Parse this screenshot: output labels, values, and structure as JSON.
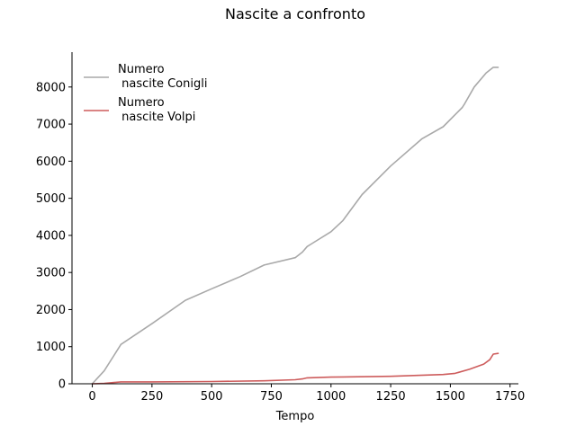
{
  "chart_data": {
    "type": "line",
    "title": "Nascite a confronto",
    "xlabel": "Tempo",
    "ylabel": "",
    "xlim": [
      -85,
      1785
    ],
    "ylim": [
      0,
      8940
    ],
    "xticks": [
      0,
      250,
      500,
      750,
      1000,
      1250,
      1500,
      1750
    ],
    "yticks": [
      0,
      1000,
      2000,
      3000,
      4000,
      5000,
      6000,
      7000,
      8000
    ],
    "grid": false,
    "legend_position": "top-left",
    "series": [
      {
        "name": "Numero\n nascite Conigli",
        "color": "#a9a9a9",
        "x": [
          0,
          50,
          120,
          250,
          390,
          500,
          620,
          720,
          850,
          880,
          900,
          920,
          1000,
          1050,
          1130,
          1250,
          1380,
          1470,
          1550,
          1560,
          1600,
          1650,
          1680,
          1700
        ],
        "y": [
          0,
          350,
          1060,
          1620,
          2250,
          2560,
          2890,
          3200,
          3400,
          3550,
          3700,
          3780,
          4100,
          4400,
          5100,
          5870,
          6600,
          6930,
          7450,
          7550,
          8000,
          8380,
          8530,
          8530
        ]
      },
      {
        "name": "Numero\n nascite Volpi",
        "color": "#cd5c5c",
        "x": [
          0,
          50,
          120,
          250,
          500,
          720,
          850,
          880,
          900,
          1000,
          1250,
          1470,
          1520,
          1580,
          1640,
          1665,
          1680,
          1700
        ],
        "y": [
          0,
          10,
          50,
          50,
          60,
          80,
          110,
          130,
          160,
          180,
          200,
          250,
          280,
          390,
          530,
          650,
          800,
          820
        ]
      }
    ]
  }
}
